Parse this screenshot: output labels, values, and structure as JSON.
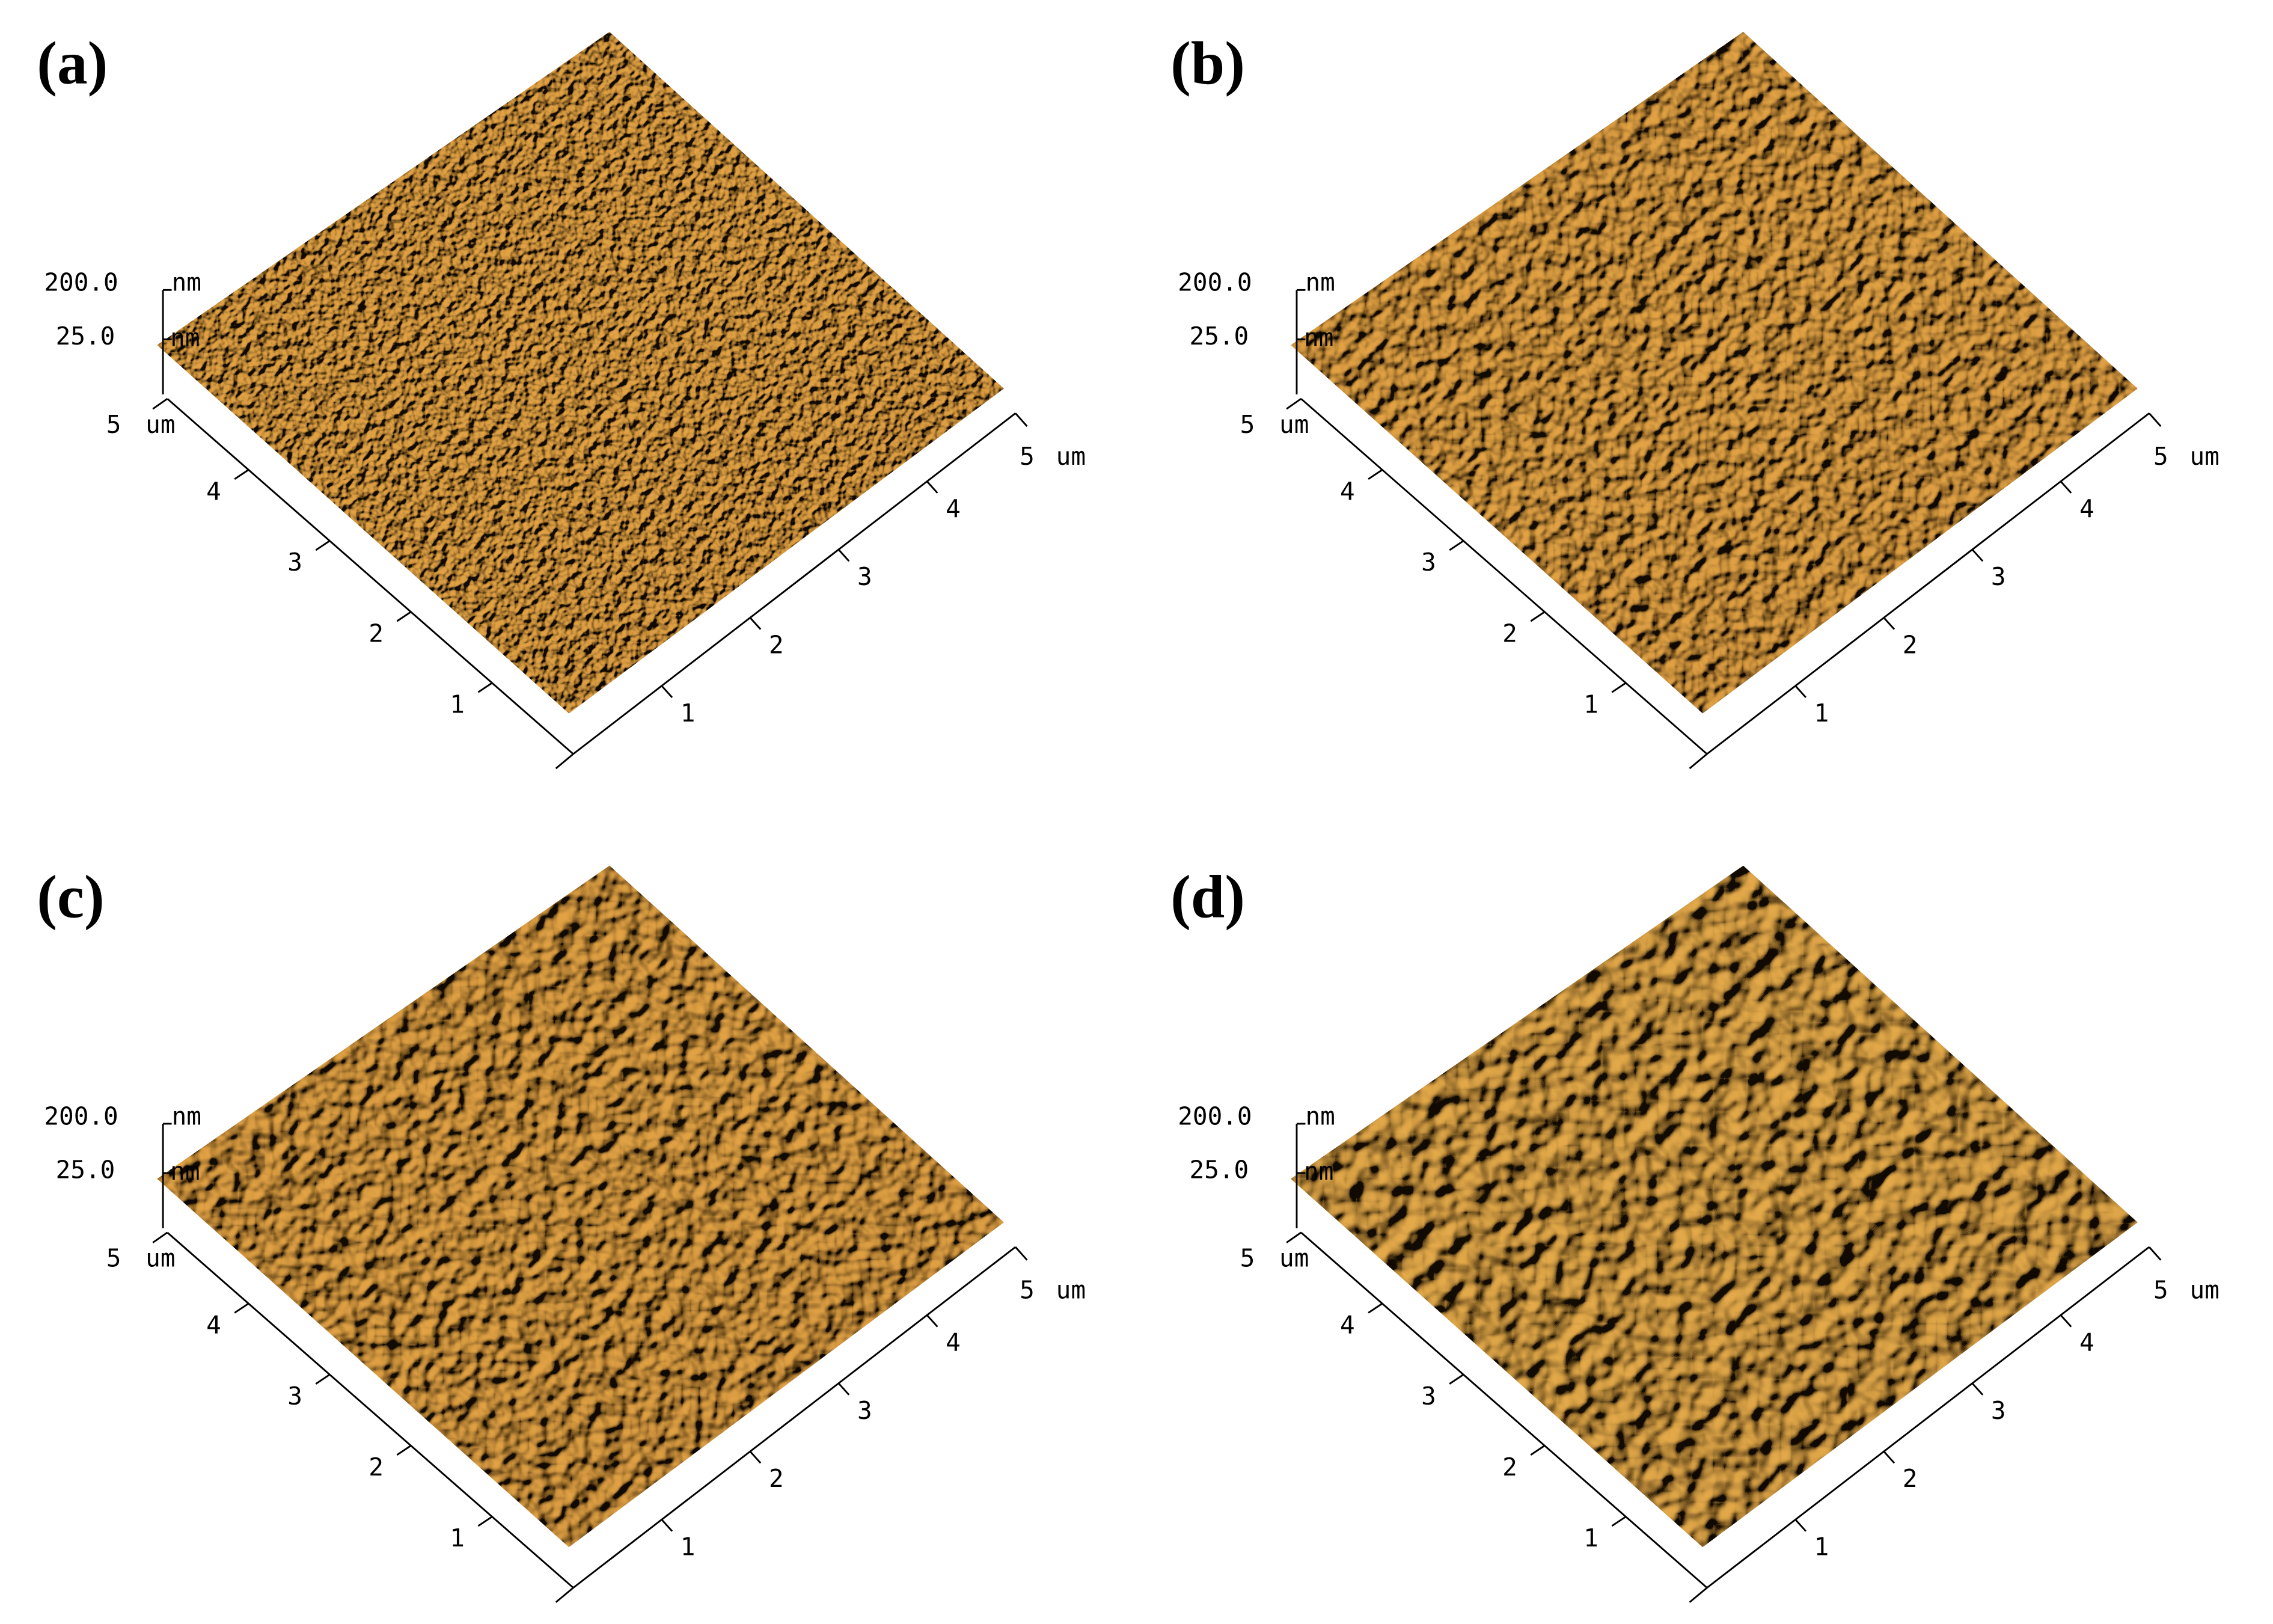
{
  "panels": [
    {
      "label": "(a)",
      "z_top": "200.0",
      "z_top_unit": "nm",
      "z_bottom": "25.0",
      "z_bottom_unit": "nm",
      "left_axis": {
        "end": "5",
        "unit": "um",
        "ticks": [
          "1",
          "2",
          "3",
          "4"
        ]
      },
      "right_axis": {
        "end": "5",
        "unit": "um",
        "ticks": [
          "1",
          "2",
          "3",
          "4"
        ]
      }
    },
    {
      "label": "(b)",
      "z_top": "200.0",
      "z_top_unit": "nm",
      "z_bottom": "25.0",
      "z_bottom_unit": "nm",
      "left_axis": {
        "end": "5",
        "unit": "um",
        "ticks": [
          "1",
          "2",
          "3",
          "4"
        ]
      },
      "right_axis": {
        "end": "5",
        "unit": "um",
        "ticks": [
          "1",
          "2",
          "3",
          "4"
        ]
      }
    },
    {
      "label": "(c)",
      "z_top": "200.0",
      "z_top_unit": "nm",
      "z_bottom": "25.0",
      "z_bottom_unit": "nm",
      "left_axis": {
        "end": "5",
        "unit": "um",
        "ticks": [
          "1",
          "2",
          "3",
          "4"
        ]
      },
      "right_axis": {
        "end": "5",
        "unit": "um",
        "ticks": [
          "1",
          "2",
          "3",
          "4"
        ]
      }
    },
    {
      "label": "(d)",
      "z_top": "200.0",
      "z_top_unit": "nm",
      "z_bottom": "25.0",
      "z_bottom_unit": "nm",
      "left_axis": {
        "end": "5",
        "unit": "um",
        "ticks": [
          "1",
          "2",
          "3",
          "4"
        ]
      },
      "right_axis": {
        "end": "5",
        "unit": "um",
        "ticks": [
          "1",
          "2",
          "3",
          "4"
        ]
      }
    }
  ]
}
